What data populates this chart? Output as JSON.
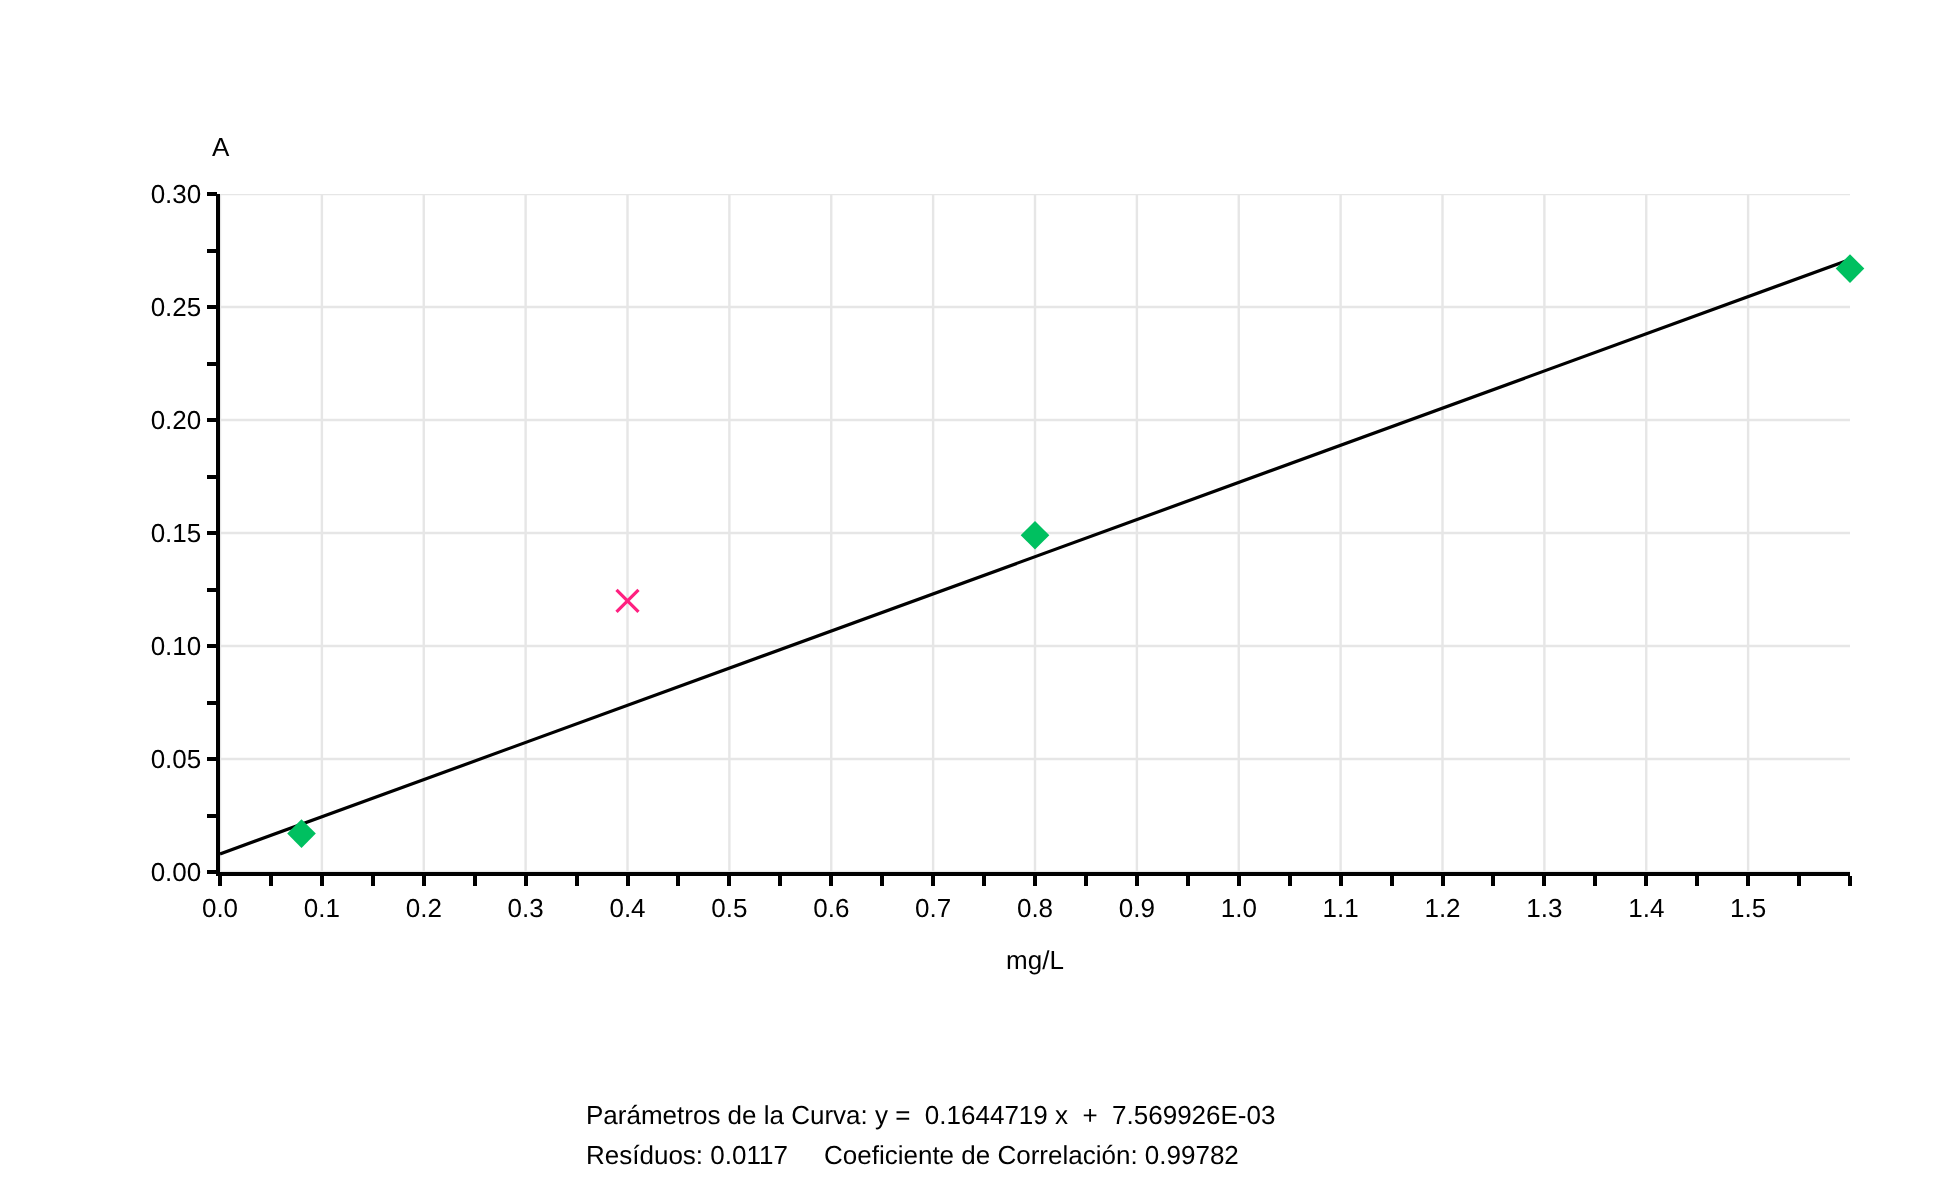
{
  "chart_data": {
    "type": "scatter",
    "xlabel": "mg/L",
    "ylabel": "A",
    "series": [
      {
        "type": "line",
        "color": "#000000",
        "marker": "none",
        "x": [
          0,
          1.6
        ],
        "values": [
          0.008,
          0.271
        ]
      },
      {
        "color": "#00c060",
        "marker": "diamond",
        "x": [
          0.08,
          0.8,
          1.6
        ],
        "values": [
          0.017,
          0.149,
          0.267
        ]
      },
      {
        "color": "#ff2080",
        "marker": "cross",
        "x": [
          0.4
        ],
        "values": [
          0.12
        ]
      }
    ],
    "xlim": [
      0,
      1.6
    ],
    "xticks": [
      {
        "value": 0,
        "label": "0.0"
      },
      {
        "value": 0.05,
        "label": null
      },
      {
        "value": 0.1,
        "label": "0.1"
      },
      {
        "value": 0.15,
        "label": null
      },
      {
        "value": 0.2,
        "label": "0.2"
      },
      {
        "value": 0.25,
        "label": null
      },
      {
        "value": 0.3,
        "label": "0.3"
      },
      {
        "value": 0.35,
        "label": null
      },
      {
        "value": 0.4,
        "label": "0.4"
      },
      {
        "value": 0.45,
        "label": null
      },
      {
        "value": 0.5,
        "label": "0.5"
      },
      {
        "value": 0.55,
        "label": null
      },
      {
        "value": 0.6,
        "label": "0.6"
      },
      {
        "value": 0.65,
        "label": null
      },
      {
        "value": 0.7,
        "label": "0.7"
      },
      {
        "value": 0.75,
        "label": null
      },
      {
        "value": 0.8,
        "label": "0.8"
      },
      {
        "value": 0.85,
        "label": null
      },
      {
        "value": 0.9,
        "label": "0.9"
      },
      {
        "value": 0.95,
        "label": null
      },
      {
        "value": 1.0,
        "label": "1.0"
      },
      {
        "value": 1.05,
        "label": null
      },
      {
        "value": 1.1,
        "label": "1.1"
      },
      {
        "value": 1.15,
        "label": null
      },
      {
        "value": 1.2,
        "label": "1.2"
      },
      {
        "value": 1.25,
        "label": null
      },
      {
        "value": 1.3,
        "label": "1.3"
      },
      {
        "value": 1.35,
        "label": null
      },
      {
        "value": 1.4,
        "label": "1.4"
      },
      {
        "value": 1.45,
        "label": null
      },
      {
        "value": 1.5,
        "label": "1.5"
      },
      {
        "value": 1.55,
        "label": null
      },
      {
        "value": 1.6,
        "label": null
      }
    ],
    "ylim": [
      0,
      0.3
    ],
    "yticks": [
      {
        "value": 0,
        "label": "0.00"
      },
      {
        "value": 0.025,
        "label": null
      },
      {
        "value": 0.05,
        "label": "0.05"
      },
      {
        "value": 0.075,
        "label": null
      },
      {
        "value": 0.1,
        "label": "0.10"
      },
      {
        "value": 0.125,
        "label": null
      },
      {
        "value": 0.15,
        "label": "0.15"
      },
      {
        "value": 0.175,
        "label": null
      },
      {
        "value": 0.2,
        "label": "0.20"
      },
      {
        "value": 0.225,
        "label": null
      },
      {
        "value": 0.25,
        "label": "0.25"
      },
      {
        "value": 0.275,
        "label": null
      },
      {
        "value": 0.3,
        "label": "0.30"
      }
    ],
    "grid": true,
    "annotations": [
      "Parámetros de la Curva: y =  0.1644719 x  +  7.569926E-03",
      "Resíduos: 0.0117     Coeficiente de Correlación: 0.99782"
    ]
  }
}
